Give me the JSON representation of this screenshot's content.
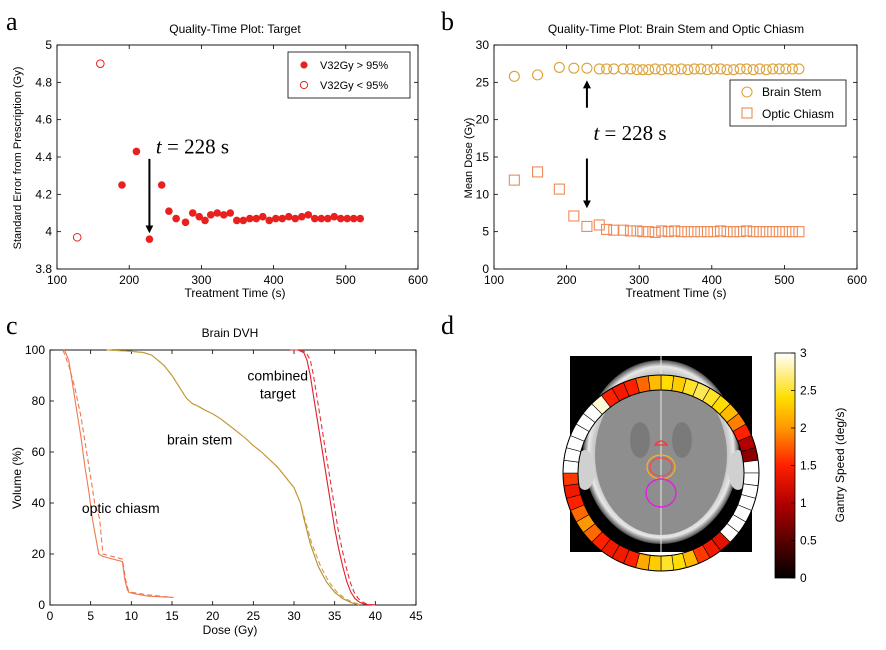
{
  "chart_data": [
    {
      "panel": "a",
      "type": "scatter",
      "title": "Quality-Time Plot: Target",
      "xlabel": "Treatment Time (s)",
      "ylabel": "Standard Error from Prescription (Gy)",
      "xlim": [
        100,
        600
      ],
      "ylim": [
        3.8,
        5
      ],
      "xticks": [
        100,
        200,
        300,
        400,
        500,
        600
      ],
      "yticks": [
        3.8,
        4,
        4.2,
        4.4,
        4.6,
        4.8,
        5
      ],
      "legend_position": "top-right",
      "color": "#e8201e",
      "series": [
        {
          "name": "V32Gy > 95%",
          "marker": "filled-circle",
          "x": [
            190,
            210,
            228,
            245,
            255,
            265,
            278,
            288,
            297,
            305,
            313,
            322,
            331,
            340,
            349,
            358,
            367,
            376,
            385,
            394,
            403,
            412,
            421,
            430,
            439,
            448,
            457,
            466,
            475,
            484,
            493,
            502,
            511,
            520
          ],
          "y": [
            4.25,
            4.43,
            3.96,
            4.25,
            4.11,
            4.07,
            4.05,
            4.1,
            4.08,
            4.06,
            4.09,
            4.1,
            4.09,
            4.1,
            4.06,
            4.06,
            4.07,
            4.07,
            4.08,
            4.06,
            4.07,
            4.07,
            4.08,
            4.07,
            4.08,
            4.09,
            4.07,
            4.07,
            4.07,
            4.08,
            4.07,
            4.07,
            4.07,
            4.07
          ]
        },
        {
          "name": "V32Gy < 95%",
          "marker": "open-circle",
          "x": [
            128,
            160
          ],
          "y": [
            3.97,
            4.9
          ]
        }
      ],
      "annotation": {
        "t_label": "t",
        "rest": " = 228 s",
        "arrow_x": 228,
        "arrow_from_y": 4.39,
        "arrow_to_y": 3.97,
        "text_x": 237,
        "text_y": 4.42
      }
    },
    {
      "panel": "b",
      "type": "scatter",
      "title": "Quality-Time Plot: Brain Stem and Optic Chiasm",
      "xlabel": "Treatment Time (s)",
      "ylabel": "Mean Dose (Gy)",
      "xlim": [
        100,
        600
      ],
      "ylim": [
        0,
        30
      ],
      "xticks": [
        100,
        200,
        300,
        400,
        500,
        600
      ],
      "yticks": [
        0,
        5,
        10,
        15,
        20,
        25,
        30
      ],
      "legend_position": "right",
      "color": "#e8a040",
      "series": [
        {
          "name": "Brain Stem",
          "marker": "open-circle",
          "color": "#dca23c",
          "x": [
            128,
            160,
            190,
            210,
            228,
            245,
            255,
            265,
            278,
            288,
            297,
            305,
            313,
            322,
            331,
            340,
            349,
            358,
            367,
            376,
            385,
            394,
            403,
            412,
            421,
            430,
            439,
            448,
            457,
            466,
            475,
            484,
            493,
            502,
            511,
            520
          ],
          "y": [
            25.8,
            26.0,
            27.0,
            26.9,
            26.9,
            26.8,
            26.8,
            26.8,
            26.8,
            26.8,
            26.7,
            26.7,
            26.7,
            26.8,
            26.7,
            26.8,
            26.7,
            26.8,
            26.7,
            26.8,
            26.8,
            26.7,
            26.8,
            26.8,
            26.7,
            26.7,
            26.8,
            26.8,
            26.7,
            26.8,
            26.7,
            26.8,
            26.8,
            26.8,
            26.8,
            26.8
          ]
        },
        {
          "name": "Optic Chiasm",
          "marker": "open-square",
          "color": "#ef8a55",
          "x": [
            128,
            160,
            190,
            210,
            228,
            245,
            255,
            265,
            278,
            288,
            297,
            305,
            313,
            322,
            331,
            340,
            349,
            358,
            367,
            376,
            385,
            394,
            403,
            412,
            421,
            430,
            439,
            448,
            457,
            466,
            475,
            484,
            493,
            502,
            511,
            520
          ],
          "y": [
            11.9,
            13.0,
            10.7,
            7.1,
            5.7,
            5.9,
            5.3,
            5.2,
            5.2,
            5.1,
            5.1,
            5.0,
            5.0,
            4.9,
            5.1,
            5.0,
            5.1,
            5.0,
            5.0,
            5.0,
            5.0,
            5.0,
            5.0,
            5.1,
            5.0,
            5.0,
            5.0,
            5.1,
            5.0,
            5.0,
            5.0,
            5.0,
            5.0,
            5.0,
            5.0,
            5.0
          ]
        }
      ],
      "annotation": {
        "t_label": "t",
        "rest": " = 228 s",
        "arrow_up": {
          "x": 228,
          "from_y": 21.6,
          "to_y": 25.8
        },
        "arrow_down": {
          "x": 228,
          "from_y": 14.8,
          "to_y": 7.6
        },
        "text_x": 237,
        "text_y": 17.3
      }
    },
    {
      "panel": "c",
      "type": "line",
      "title": "Brain DVH",
      "xlabel": "Dose (Gy)",
      "ylabel": "Volume (%)",
      "xlim": [
        0,
        45
      ],
      "ylim": [
        0,
        100
      ],
      "xticks": [
        0,
        5,
        10,
        15,
        20,
        25,
        30,
        35,
        40,
        45
      ],
      "yticks": [
        0,
        20,
        40,
        60,
        80,
        100
      ],
      "series": [
        {
          "name": "optic chiasm",
          "style": "solid",
          "color": "#f07850",
          "x": [
            1.8,
            2.3,
            2.7,
            3.2,
            3.8,
            4.3,
            4.8,
            5.2,
            5.6,
            6.0,
            6.5,
            8.9,
            9.2,
            9.5,
            9.7,
            10.2,
            12.0,
            15.2
          ],
          "y": [
            100,
            96,
            88,
            78,
            66,
            54,
            44,
            34,
            27,
            20,
            19,
            17,
            10,
            6,
            5,
            4.5,
            3.5,
            3.0
          ]
        },
        {
          "name": "optic chiasm (alt)",
          "style": "dashed",
          "color": "#f07850",
          "x": [
            1.6,
            2.3,
            3.0,
            3.8,
            4.4,
            5.0,
            5.5,
            6.1,
            6.5,
            8.9,
            9.3,
            9.6,
            10.0,
            12.0,
            15.0
          ],
          "y": [
            100,
            94,
            86,
            74,
            62,
            50,
            40,
            34,
            20,
            18,
            10,
            6,
            5,
            4,
            3.0
          ]
        },
        {
          "name": "brain stem",
          "style": "solid",
          "color": "#b09030",
          "x": [
            7,
            10,
            11.5,
            12.5,
            14,
            15,
            16,
            16.8,
            17.5,
            18.2,
            19,
            20,
            21,
            22,
            23,
            24,
            25,
            26,
            27,
            28,
            29,
            30,
            30.8,
            31.2,
            32,
            33,
            34,
            35,
            36,
            37,
            38
          ],
          "y": [
            100,
            99.5,
            99,
            98,
            94,
            90,
            85,
            81,
            79,
            78,
            76.5,
            75,
            73,
            70.5,
            68,
            65.5,
            62.5,
            60,
            57,
            54,
            50,
            46,
            40,
            34,
            24,
            15,
            9,
            5,
            2.5,
            1,
            0
          ]
        },
        {
          "name": "brain stem (alt)",
          "style": "dashed",
          "color": "#d0a040",
          "x": [
            7,
            10,
            11.5,
            12.5,
            14,
            15,
            16,
            16.8,
            17.5,
            18.2,
            19,
            20,
            21,
            22,
            23,
            24,
            25,
            26,
            27,
            28,
            29,
            30,
            30.8,
            31.3,
            32.2,
            33.3,
            34.3,
            35.3,
            36.3,
            37.3,
            38.3
          ],
          "y": [
            100,
            99.5,
            99,
            98,
            94,
            90,
            85,
            81,
            79,
            78,
            76.5,
            75,
            73,
            70.5,
            68,
            65.5,
            62.5,
            60,
            57,
            54,
            50,
            46,
            40,
            34,
            24,
            15,
            9,
            5,
            2.5,
            1,
            0
          ]
        },
        {
          "name": "combined target",
          "style": "solid",
          "color": "#e0202a",
          "x": [
            29.5,
            30.5,
            31.2,
            31.6,
            32.0,
            32.5,
            33.0,
            33.5,
            34.0,
            34.5,
            35.0,
            35.5,
            36.0,
            36.5,
            37.0,
            37.5,
            38.0,
            38.5,
            39.0,
            40.0
          ],
          "y": [
            100,
            100,
            99,
            96,
            90,
            80,
            70,
            60,
            50,
            40,
            30,
            22,
            15,
            9,
            5,
            2.5,
            1.2,
            0.5,
            0.2,
            0
          ]
        },
        {
          "name": "combined target (alt)",
          "style": "dashed",
          "color": "#e83040",
          "x": [
            29.8,
            30.8,
            31.5,
            32.0,
            32.4,
            32.9,
            33.4,
            33.9,
            34.4,
            34.9,
            35.4,
            35.9,
            36.4,
            36.9,
            37.4,
            37.9,
            38.4,
            38.9,
            39.4,
            40.2
          ],
          "y": [
            100,
            100,
            99,
            96,
            90,
            80,
            70,
            60,
            50,
            40,
            30,
            22,
            15,
            9,
            5,
            2.5,
            1.2,
            0.5,
            0.2,
            0
          ]
        }
      ],
      "labels": [
        {
          "text": "combined",
          "x": 28.0,
          "y": 88
        },
        {
          "text": "target",
          "x": 28.0,
          "y": 81
        },
        {
          "text": "brain stem",
          "x": 18.4,
          "y": 63
        },
        {
          "text": "optic chiasm",
          "x": 8.7,
          "y": 36
        }
      ]
    },
    {
      "panel": "d",
      "type": "heatmap",
      "colorbar_label": "Gantry Speed (deg/s)",
      "colorbar_ticks": [
        0,
        0.5,
        1,
        1.5,
        2,
        2.5,
        3
      ],
      "colorbar_range": [
        0,
        3
      ],
      "gantry_speed_segments": [
        2.4,
        2.3,
        2.5,
        2.6,
        2.5,
        2.4,
        2.2,
        1.9,
        1.5,
        1.0,
        0.8,
        3.0,
        3.0,
        3.0,
        3.0,
        3.0,
        3.0,
        3.0,
        1.3,
        1.4,
        1.6,
        2.2,
        2.4,
        2.5,
        2.3,
        2.1,
        1.5,
        1.4,
        1.4,
        1.5,
        1.8,
        2.0,
        1.8,
        1.5,
        1.4,
        1.6,
        3.0,
        3.0,
        3.0,
        3.0,
        3.0,
        3.0,
        2.9,
        1.5,
        1.4,
        1.5,
        1.8,
        2.2
      ]
    }
  ],
  "panel_letters": {
    "a": "a",
    "b": "b",
    "c": "c",
    "d": "d"
  }
}
